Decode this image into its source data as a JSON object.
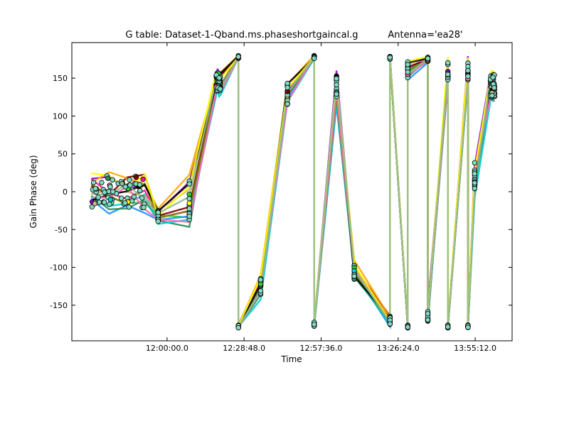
{
  "chart_data": {
    "type": "line",
    "title": "G table: Dataset-1-Qband.ms.phaseshortgaincal.g",
    "subtitle": "Antenna='ea28'",
    "xlabel": "Time",
    "ylabel": "Gain Phase (deg)",
    "x_range_seconds": [
      41064,
      50940
    ],
    "ylim": [
      -197,
      197
    ],
    "x_ticks": [
      {
        "seconds": 43200,
        "label": "12:00:00.0"
      },
      {
        "seconds": 44928,
        "label": "12:28:48.0"
      },
      {
        "seconds": 46656,
        "label": "12:57:36.0"
      },
      {
        "seconds": 48384,
        "label": "13:26:24.0"
      },
      {
        "seconds": 50112,
        "label": "13:55:12.0"
      }
    ],
    "y_ticks": [
      -150,
      -100,
      -50,
      0,
      50,
      100,
      150
    ],
    "grid": false,
    "marker_color": "#7fdbc4",
    "scans": [
      {
        "t": [
          41500,
          42700
        ],
        "center": 0,
        "spread": 35
      },
      {
        "t": [
          43000,
          43000
        ],
        "center": -32,
        "spread": 12
      },
      {
        "t": [
          43700,
          43700
        ],
        "center": -10,
        "spread": 45
      },
      {
        "t": [
          44300,
          44400
        ],
        "center": 145,
        "spread": 20
      },
      {
        "t": [
          44800,
          44800
        ],
        "center": 178,
        "spread": 3
      },
      {
        "t": [
          44800,
          44800
        ],
        "center": -178,
        "spread": 3
      },
      {
        "t": [
          45300,
          45300
        ],
        "center": -125,
        "spread": 18
      },
      {
        "t": [
          45900,
          45900
        ],
        "center": 130,
        "spread": 25
      },
      {
        "t": [
          46500,
          46500
        ],
        "center": 178,
        "spread": 3
      },
      {
        "t": [
          46500,
          46500
        ],
        "center": -175,
        "spread": 5
      },
      {
        "t": [
          47000,
          47000
        ],
        "center": 140,
        "spread": 30
      },
      {
        "t": [
          47400,
          47400
        ],
        "center": -105,
        "spread": 18
      },
      {
        "t": [
          48200,
          48200
        ],
        "center": -170,
        "spread": 10
      },
      {
        "t": [
          48200,
          48200
        ],
        "center": 177,
        "spread": 3
      },
      {
        "t": [
          48600,
          48600
        ],
        "center": -178,
        "spread": 3
      },
      {
        "t": [
          48600,
          48600
        ],
        "center": 160,
        "spread": 20
      },
      {
        "t": [
          49050,
          49050
        ],
        "center": 175,
        "spread": 5
      },
      {
        "t": [
          49050,
          49050
        ],
        "center": -165,
        "spread": 12
      },
      {
        "t": [
          49500,
          49500
        ],
        "center": 160,
        "spread": 20
      },
      {
        "t": [
          49500,
          49500
        ],
        "center": -178,
        "spread": 3
      },
      {
        "t": [
          49950,
          49950
        ],
        "center": 160,
        "spread": 20
      },
      {
        "t": [
          49950,
          49950
        ],
        "center": -178,
        "spread": 3
      },
      {
        "t": [
          50100,
          50100
        ],
        "center": 20,
        "spread": 35
      },
      {
        "t": [
          50450,
          50550
        ],
        "center": 140,
        "spread": 25
      }
    ],
    "series": [
      {
        "color": "#9400d3",
        "offset": 6
      },
      {
        "color": "#ff1493",
        "offset": 0
      },
      {
        "color": "#32cd32",
        "offset": -2
      },
      {
        "color": "#800000",
        "offset": 3
      },
      {
        "color": "#1e90ff",
        "offset": -5
      },
      {
        "color": "#ffa500",
        "offset": 4
      },
      {
        "color": "#2e8b57",
        "offset": -4
      },
      {
        "color": "#00ced1",
        "offset": -6
      },
      {
        "color": "#d2b48c",
        "offset": 2
      },
      {
        "color": "#808000",
        "offset": -1
      },
      {
        "color": "#000000",
        "offset": 1
      },
      {
        "color": "#ff69b4",
        "offset": -3
      },
      {
        "color": "#ffff00",
        "offset": 5
      },
      {
        "color": "#8fbc8f",
        "offset": 0
      }
    ]
  }
}
